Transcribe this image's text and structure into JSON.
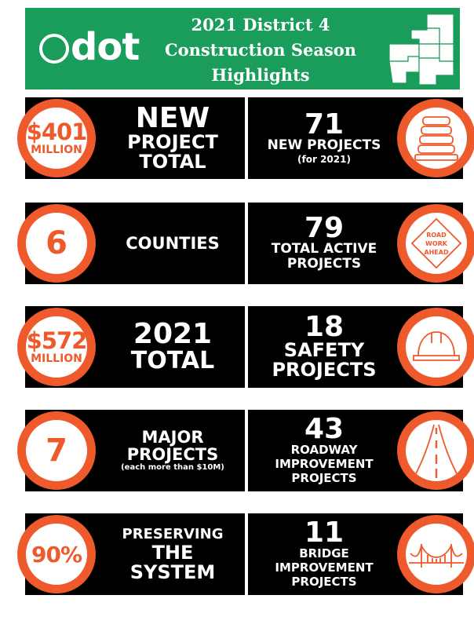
{
  "header": {
    "logo_text": "dot",
    "title_lines": [
      "2021 District 4",
      "Construction Season",
      "Highlights"
    ]
  },
  "colors": {
    "accent": "#ee5a2c",
    "brand_green": "#1a9c5b",
    "panel": "#000000"
  },
  "left_stats": [
    {
      "circle_value": "$401",
      "circle_unit": "MILLION",
      "lines": [
        "NEW",
        "PROJECT",
        "TOTAL"
      ]
    },
    {
      "circle_value": "6",
      "lines": [
        "COUNTIES"
      ]
    },
    {
      "circle_value": "$572",
      "circle_unit": "MILLION",
      "lines": [
        "2021",
        "TOTAL"
      ]
    },
    {
      "circle_value": "7",
      "lines": [
        "MAJOR",
        "PROJECTS"
      ],
      "note": "(each more than $10M)"
    },
    {
      "circle_value": "90%",
      "lines": [
        "PRESERVING",
        "THE",
        "SYSTEM"
      ]
    }
  ],
  "right_stats": [
    {
      "number": "71",
      "lines": [
        "NEW PROJECTS"
      ],
      "note": "(for 2021)",
      "icon": "traffic-barrel-icon"
    },
    {
      "number": "79",
      "lines": [
        "TOTAL ACTIVE",
        "PROJECTS"
      ],
      "icon": "road-work-sign-icon",
      "sign_text": [
        "ROAD",
        "WORK",
        "AHEAD"
      ]
    },
    {
      "number": "18",
      "lines": [
        "SAFETY",
        "PROJECTS"
      ],
      "icon": "hard-hat-icon"
    },
    {
      "number": "43",
      "lines": [
        "ROADWAY",
        "IMPROVEMENT",
        "PROJECTS"
      ],
      "icon": "road-icon"
    },
    {
      "number": "11",
      "lines": [
        "BRIDGE",
        "IMPROVEMENT",
        "PROJECTS"
      ],
      "icon": "bridge-icon"
    }
  ]
}
